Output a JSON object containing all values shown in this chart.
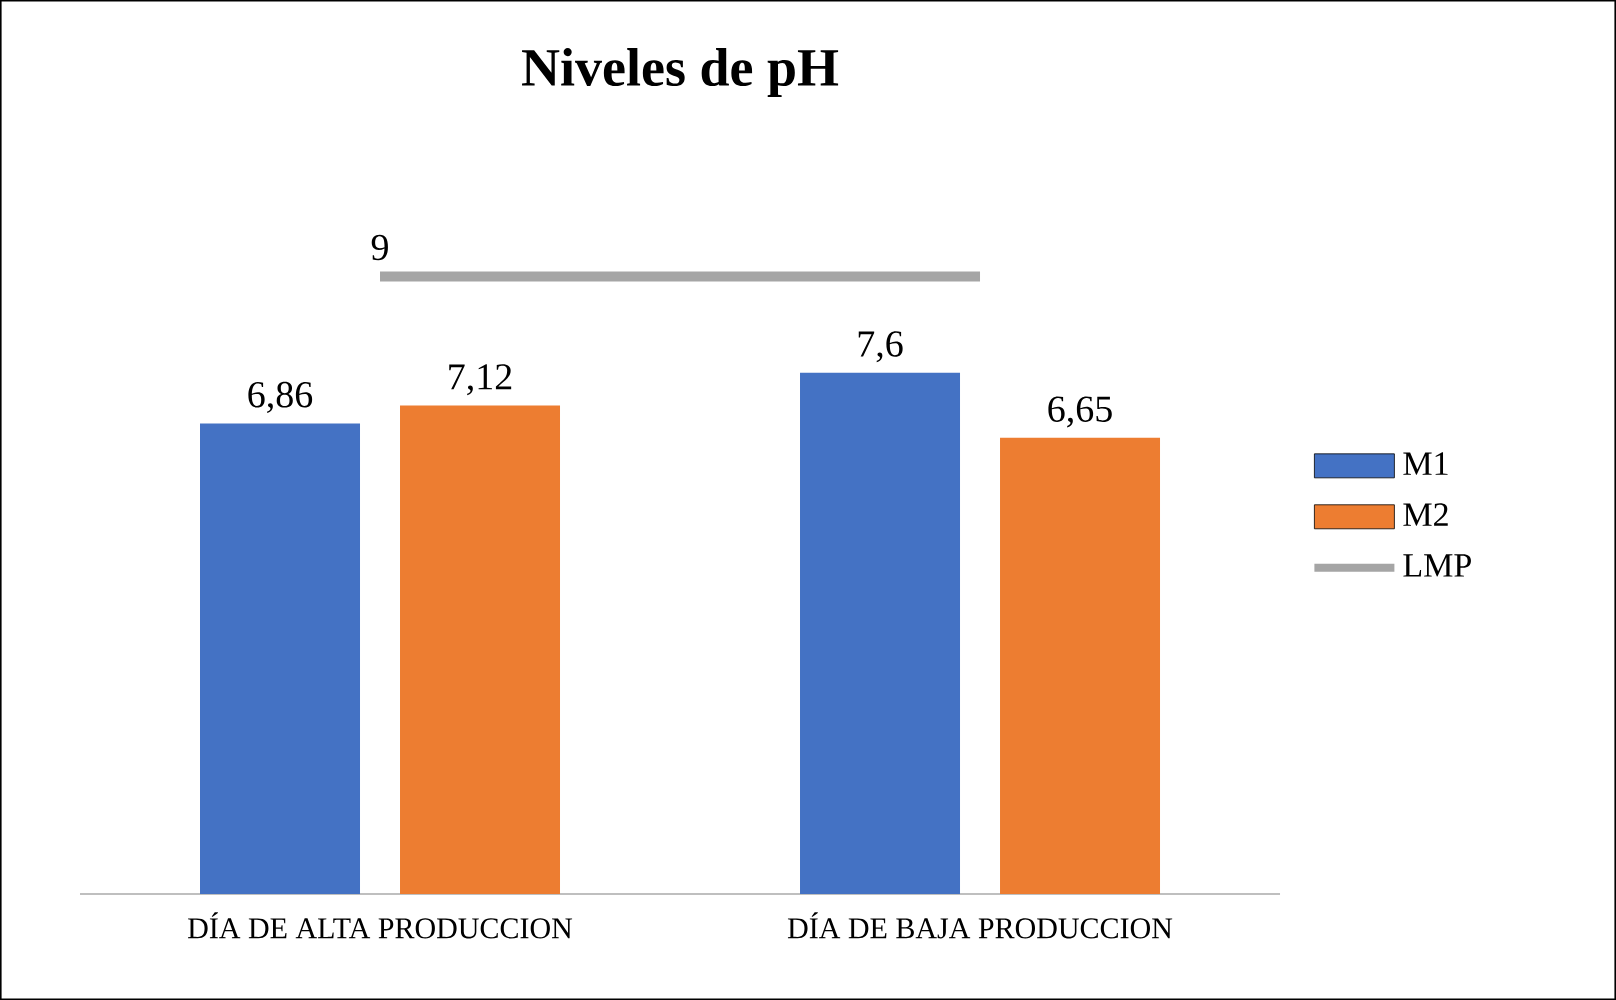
{
  "chart_data": {
    "type": "bar",
    "title": "Niveles de pH",
    "categories": [
      "DÍA DE ALTA PRODUCCION",
      "DÍA DE BAJA PRODUCCION"
    ],
    "series": [
      {
        "name": "M1",
        "color": "#4472c4",
        "values": [
          6.86,
          7.6
        ],
        "value_labels": [
          "6,86",
          "7,6"
        ]
      },
      {
        "name": "M2",
        "color": "#ed7d31",
        "values": [
          7.12,
          6.65
        ],
        "value_labels": [
          "7,12",
          "6,65"
        ]
      },
      {
        "name": "LMP",
        "type": "line",
        "color": "#a5a5a5",
        "values": [
          9,
          9
        ],
        "value_labels": [
          "9",
          null
        ]
      }
    ],
    "legend": "right"
  }
}
